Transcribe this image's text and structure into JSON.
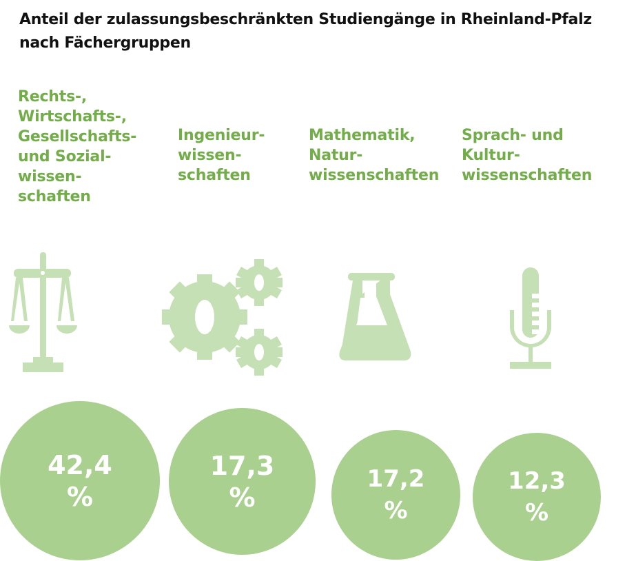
{
  "title_line1": "Anteil der zulassungsbeschränkten Studiengänge in Rheinland-Pfalz",
  "title_line2": "nach Fächergruppen",
  "colors": {
    "label": "#72ad4a",
    "icon": "#c5e0b4",
    "bubble": "#a9d08e"
  },
  "chart_data": {
    "type": "bubble",
    "title": "Anteil der zulassungsbeschränkten Studiengänge in Rheinland-Pfalz nach Fächergruppen",
    "unit": "%",
    "categories": [
      "Rechts-, Wirtschafts-, Gesellschafts- und Sozialwissenschaften",
      "Ingenieurwissenschaften",
      "Mathematik, Naturwissenschaften",
      "Sprach- und Kulturwissenschaften"
    ],
    "values": [
      42.4,
      17.3,
      17.2,
      12.3
    ],
    "labels": [
      "Rechts-,\nWirtschafts-,\nGesellschafts-\nund Sozial-\nwissen-\nschaften",
      "Ingenieur-\nwissen-\nschaften",
      "Mathematik,\nNatur-\nwissenschaften",
      "Sprach- und\nKultur-\nwissenschaften"
    ],
    "value_labels": [
      "42,4",
      "17,3",
      "17,2",
      "12,3"
    ],
    "percent_sign": "%",
    "icons": [
      "scales-icon",
      "gears-icon",
      "flask-icon",
      "microphone-icon"
    ]
  }
}
